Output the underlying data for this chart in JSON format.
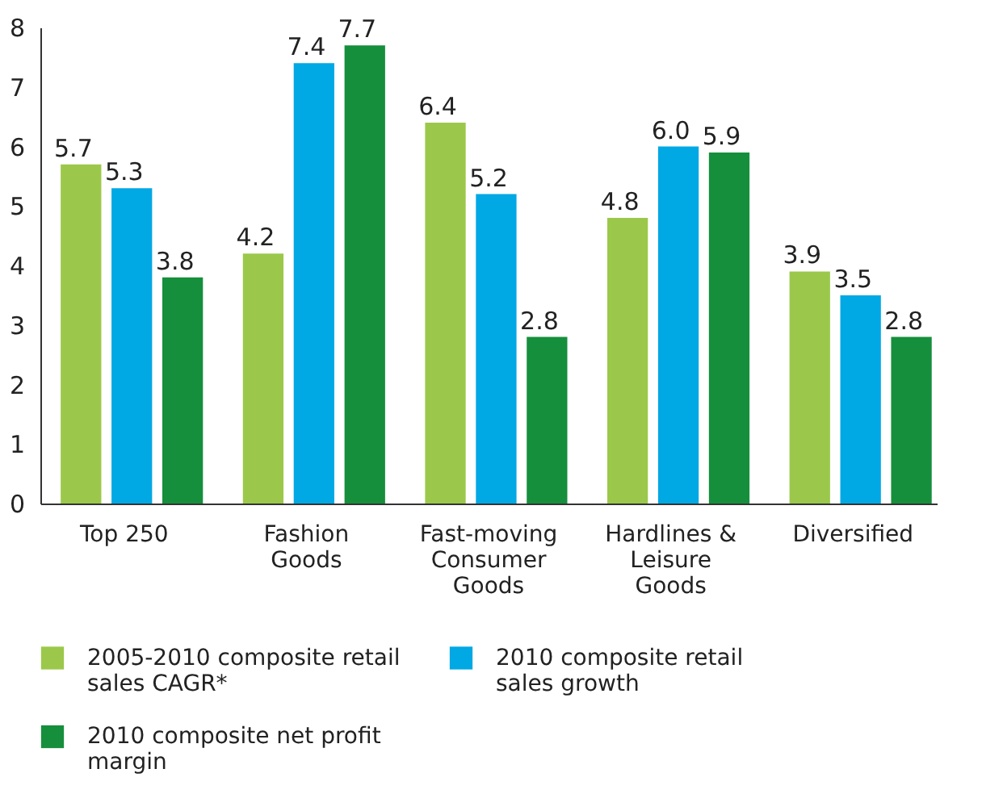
{
  "chart_data": {
    "type": "bar",
    "categories": [
      "Top 250",
      "Fashion Goods",
      "Fast-moving Consumer Goods",
      "Hardlines & Leisure Goods",
      "Diversified"
    ],
    "series": [
      {
        "name": "2005-2010 composite retail sales CAGR*",
        "color": "#9bc84a",
        "values": [
          5.7,
          4.2,
          6.4,
          4.8,
          3.9
        ],
        "value_labels": [
          "5.7",
          "4.2",
          "6.4",
          "4.8",
          "3.9"
        ]
      },
      {
        "name": "2010 composite retail sales growth",
        "color": "#00a8e4",
        "values": [
          5.3,
          7.4,
          5.2,
          6.0,
          3.5
        ],
        "value_labels": [
          "5.3",
          "7.4",
          "5.2",
          "6.0",
          "3.5"
        ]
      },
      {
        "name": "2010 composite net profit margin",
        "color": "#158f3c",
        "values": [
          3.8,
          7.7,
          2.8,
          5.9,
          2.8
        ],
        "value_labels": [
          "3.8",
          "7.7",
          "2.8",
          "5.9",
          "2.8"
        ]
      }
    ],
    "ylim": [
      0,
      8
    ],
    "yticks": [
      0,
      1,
      2,
      3,
      4,
      5,
      6,
      7,
      8
    ],
    "grid": false,
    "legend": "bottom"
  }
}
